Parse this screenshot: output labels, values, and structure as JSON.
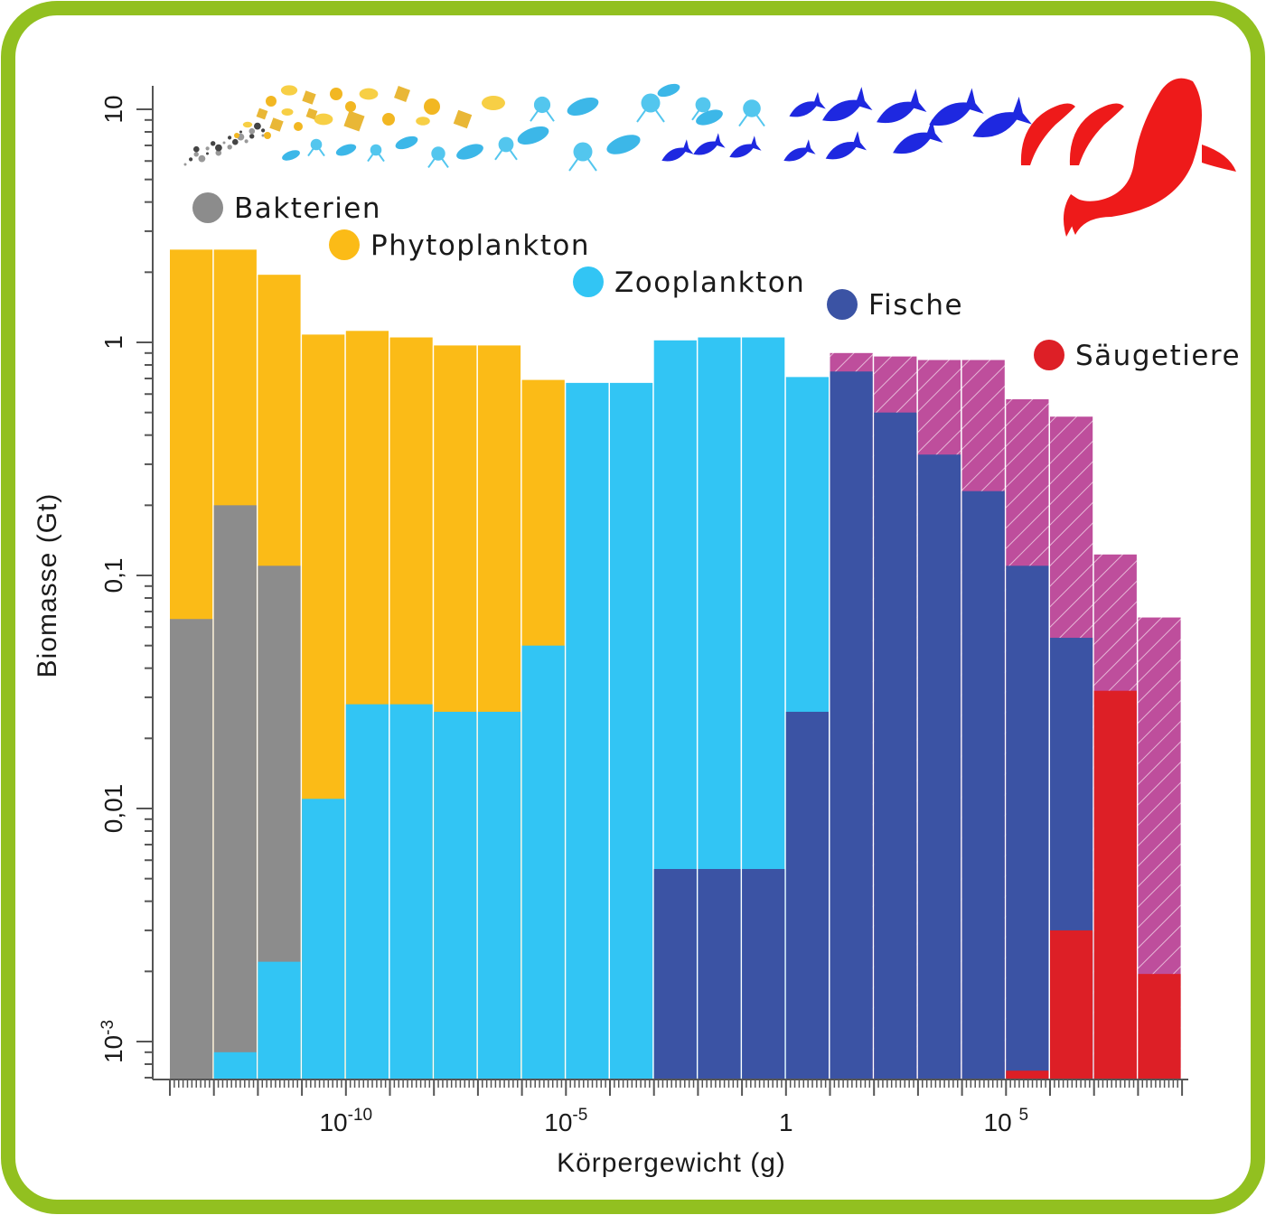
{
  "chart_data": {
    "type": "bar",
    "stacked_log_histogram": true,
    "ylabel": "Biomasse (Gt)",
    "xlabel": "Körpergewicht (g)",
    "y_scale": "log",
    "ylim": [
      0.00068,
      13
    ],
    "y_ticks": [
      {
        "value": 10,
        "label": "10"
      },
      {
        "value": 1,
        "label": "1"
      },
      {
        "value": 0.1,
        "label": "0,1"
      },
      {
        "value": 0.01,
        "label": "0,01"
      },
      {
        "value": 0.001,
        "label": "10-3",
        "base": "10",
        "exp": "-3"
      }
    ],
    "x_scale": "log",
    "x_ticks": [
      {
        "value": 1e-10,
        "base": "10",
        "exp": "-10"
      },
      {
        "value": 1e-05,
        "base": "10",
        "exp": "-5"
      },
      {
        "value": 1,
        "base": "1",
        "exp": ""
      },
      {
        "value": 100000.0,
        "base": "10 ",
        "exp": "5"
      }
    ],
    "x_bins_log10_start": -14,
    "x_bin_width_log10": 1,
    "legend": [
      {
        "name": "Bakterien",
        "color": "#8c8c8c"
      },
      {
        "name": "Phytoplankton",
        "color": "#fbbb17"
      },
      {
        "name": "Zooplankton",
        "color": "#32c5f4"
      },
      {
        "name": "Fische",
        "color": "#3b53a4"
      },
      {
        "name": "Säugetiere",
        "color": "#dd1f26"
      }
    ],
    "legend_placement": "top, staggered along the size axis",
    "colors": {
      "bacteria": "#8c8c8c",
      "phytoplankton": "#fbbb17",
      "zooplankton": "#32c5f4",
      "fish": "#3b53a4",
      "mammals": "#dd1f26",
      "fish_range_hatch": "#be4e9c",
      "frame": "#92c020"
    },
    "bins": [
      {
        "total": 2.5,
        "layers": [
          [
            "bacteria",
            0.065
          ],
          [
            "phytoplankton",
            2.5
          ]
        ]
      },
      {
        "total": 2.5,
        "layers": [
          [
            "zooplankton",
            0.0009
          ],
          [
            "bacteria",
            0.2
          ],
          [
            "phytoplankton",
            2.5
          ]
        ]
      },
      {
        "total": 1.95,
        "layers": [
          [
            "zooplankton",
            0.0022
          ],
          [
            "bacteria",
            0.11
          ],
          [
            "phytoplankton",
            1.95
          ]
        ]
      },
      {
        "total": 1.08,
        "layers": [
          [
            "zooplankton",
            0.011
          ],
          [
            "phytoplankton",
            1.08
          ]
        ]
      },
      {
        "total": 1.12,
        "layers": [
          [
            "zooplankton",
            0.028
          ],
          [
            "phytoplankton",
            1.12
          ]
        ]
      },
      {
        "total": 1.05,
        "layers": [
          [
            "zooplankton",
            0.028
          ],
          [
            "phytoplankton",
            1.05
          ]
        ]
      },
      {
        "total": 0.97,
        "layers": [
          [
            "zooplankton",
            0.026
          ],
          [
            "phytoplankton",
            0.97
          ]
        ]
      },
      {
        "total": 0.97,
        "layers": [
          [
            "zooplankton",
            0.026
          ],
          [
            "phytoplankton",
            0.97
          ]
        ]
      },
      {
        "total": 0.69,
        "layers": [
          [
            "zooplankton",
            0.05
          ],
          [
            "phytoplankton",
            0.69
          ]
        ]
      },
      {
        "total": 0.67,
        "layers": [
          [
            "zooplankton",
            0.67
          ]
        ]
      },
      {
        "total": 0.67,
        "layers": [
          [
            "zooplankton",
            0.67
          ]
        ]
      },
      {
        "total": 1.02,
        "layers": [
          [
            "fish",
            0.0055
          ],
          [
            "zooplankton",
            1.02
          ]
        ]
      },
      {
        "total": 1.05,
        "layers": [
          [
            "fish",
            0.0055
          ],
          [
            "zooplankton",
            1.05
          ]
        ]
      },
      {
        "total": 1.05,
        "layers": [
          [
            "fish",
            0.0055
          ],
          [
            "zooplankton",
            1.05
          ]
        ]
      },
      {
        "total": 0.71,
        "layers": [
          [
            "fish",
            0.026
          ],
          [
            "zooplankton",
            0.71
          ]
        ]
      },
      {
        "total": 0.9,
        "fish": 0.75,
        "hatch_top": 0.9
      },
      {
        "total": 0.87,
        "fish": 0.5,
        "hatch_top": 0.87
      },
      {
        "total": 0.84,
        "fish": 0.33,
        "hatch_top": 0.84
      },
      {
        "total": 0.84,
        "fish": 0.23,
        "hatch_top": 0.84
      },
      {
        "total": 0.57,
        "layers": [
          [
            "mammals",
            0.00075
          ],
          [
            "fish",
            0.11
          ]
        ],
        "hatch_top": 0.57
      },
      {
        "total": 0.48,
        "layers": [
          [
            "mammals",
            0.003
          ],
          [
            "fish",
            0.054
          ]
        ],
        "hatch_top": 0.48
      },
      {
        "total": 0.123,
        "layers": [
          [
            "mammals",
            0.032
          ]
        ],
        "hatch_top": 0.123
      },
      {
        "total": 0.066,
        "layers": [
          [
            "mammals",
            0.00195
          ]
        ],
        "hatch_top": 0.066
      }
    ],
    "icon_strip": [
      "bacteria-icons",
      "phytoplankton-icons",
      "zooplankton-icons",
      "fish-icons",
      "dolphin-icon",
      "whale-icon"
    ]
  }
}
